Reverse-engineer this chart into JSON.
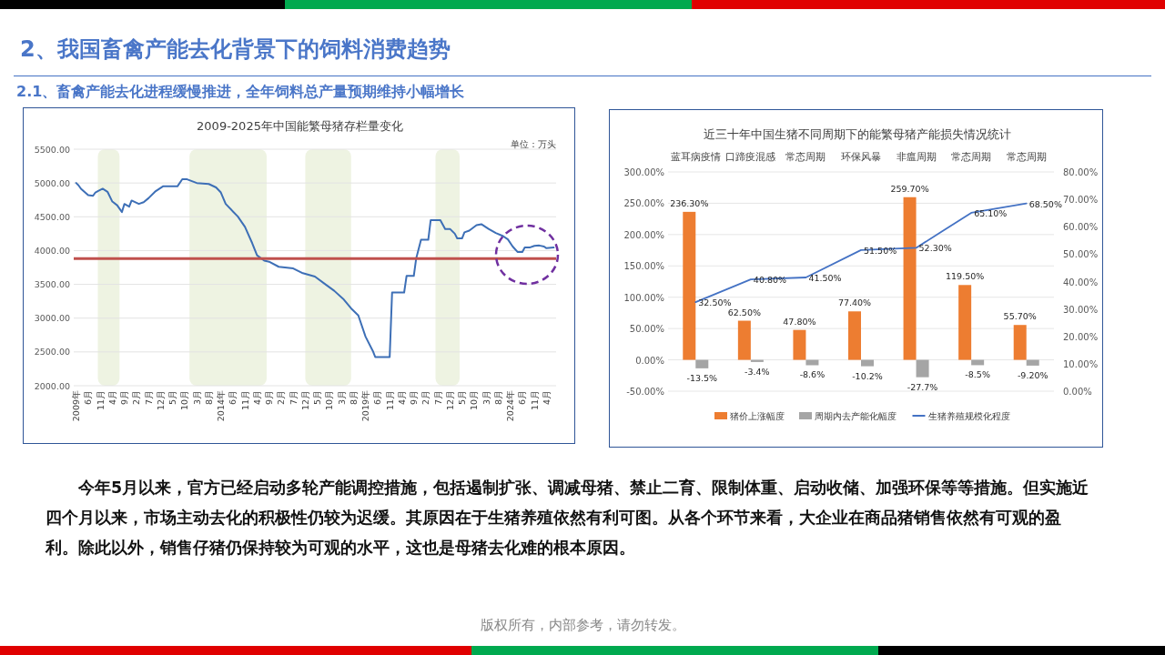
{
  "chart_data": [
    {
      "type": "other",
      "title": "2、我国畜禽产能去化背景下的饲料消费趋势",
      "subtitle": "2.1、畜禽产能去化进程缓慢推进，全年饲料总产量预期维持小幅增长",
      "annotations": [
        "今年5月以来，官方已经启动多轮产能调控措施，包括遏制扩张、调减母猪、禁止二育、限制体重、启动收储、加强环保等等措施。但实施近四个月以来，市场主动去化的积极性仍较为迟缓。其原因在于生猪养殖依然有利可图。从各个环节来看，大企业在商品猪销售依然有可观的盈利。除此以外，销售仔猪仍保持较为可观的水平，这也是母猪去化难的根本原因。",
        "版权所有，内部参考，请勿转发。"
      ]
    },
    {
      "type": "line",
      "title": "2009-2025年中国能繁母猪存栏量变化",
      "annotations": [
        "单位：万头"
      ],
      "series": [
        {
          "color": "#3d6fb6",
          "x": [
            "2009-01",
            "2009-02",
            "2009-03",
            "2009-06",
            "2009-08",
            "2009-09",
            "2009-10",
            "2009-12",
            "2010-02",
            "2010-04",
            "2010-06",
            "2010-08",
            "2010-09",
            "2010-11",
            "2010-12",
            "2011-03",
            "2011-05",
            "2011-07",
            "2011-10",
            "2012-01",
            "2012-07",
            "2012-09",
            "2012-11",
            "2013-03",
            "2013-08",
            "2013-11",
            "2014-01",
            "2014-03",
            "2014-08",
            "2014-11",
            "2015-02",
            "2015-04",
            "2015-07",
            "2015-09",
            "2016-01",
            "2016-07",
            "2016-11",
            "2017-04",
            "2017-08",
            "2017-12",
            "2018-04",
            "2018-07",
            "2018-10",
            "2019-01",
            "2019-04",
            "2019-05",
            "2019-11",
            "2019-12",
            "2020-05",
            "2020-06",
            "2020-09",
            "2020-10",
            "2020-12",
            "2021-03",
            "2021-04",
            "2021-08",
            "2021-10",
            "2021-12",
            "2022-02",
            "2022-03",
            "2022-05",
            "2022-06",
            "2022-08",
            "2022-11",
            "2023-01",
            "2023-04",
            "2023-07",
            "2023-10",
            "2023-12",
            "2024-02",
            "2024-04",
            "2024-06",
            "2024-07",
            "2024-09",
            "2024-11",
            "2025-01",
            "2025-03",
            "2025-04",
            "2025-07"
          ],
          "values": [
            5000,
            4965,
            4915,
            4820,
            4810,
            4860,
            4880,
            4915,
            4870,
            4725,
            4670,
            4570,
            4690,
            4650,
            4740,
            4690,
            4715,
            4775,
            4880,
            4950,
            4950,
            5055,
            5055,
            5000,
            4985,
            4935,
            4860,
            4690,
            4505,
            4350,
            4110,
            3930,
            3850,
            3835,
            3760,
            3735,
            3665,
            3615,
            3510,
            3405,
            3275,
            3145,
            3040,
            2725,
            2515,
            2425,
            2425,
            3380,
            3380,
            3625,
            3625,
            3885,
            4160,
            4160,
            4450,
            4450,
            4320,
            4320,
            4250,
            4180,
            4180,
            4270,
            4295,
            4375,
            4390,
            4320,
            4260,
            4215,
            4165,
            4060,
            3980,
            3980,
            4045,
            4045,
            4070,
            4075,
            4060,
            4035,
            4045
          ]
        }
      ],
      "xlim": [
        "2008-12",
        "2025-08"
      ],
      "xticks": [
        {
          "value": "2009-01",
          "label": "2009年"
        },
        {
          "value": "2009-06",
          "label": "6月"
        },
        {
          "value": "2009-11",
          "label": "11月"
        },
        {
          "value": "2010-04",
          "label": "4月"
        },
        {
          "value": "2010-09",
          "label": "9月"
        },
        {
          "value": "2011-02",
          "label": "2月"
        },
        {
          "value": "2011-07",
          "label": "7月"
        },
        {
          "value": "2011-12",
          "label": "12月"
        },
        {
          "value": "2012-05",
          "label": "5月"
        },
        {
          "value": "2012-10",
          "label": "10月"
        },
        {
          "value": "2013-03",
          "label": "3月"
        },
        {
          "value": "2013-08",
          "label": "8月"
        },
        {
          "value": "2014-01",
          "label": "2014年"
        },
        {
          "value": "2014-06",
          "label": "6月"
        },
        {
          "value": "2014-11",
          "label": "11月"
        },
        {
          "value": "2015-04",
          "label": "4月"
        },
        {
          "value": "2015-09",
          "label": "9月"
        },
        {
          "value": "2016-02",
          "label": "2月"
        },
        {
          "value": "2016-07",
          "label": "7月"
        },
        {
          "value": "2016-12",
          "label": "12月"
        },
        {
          "value": "2017-05",
          "label": "5月"
        },
        {
          "value": "2017-10",
          "label": "10月"
        },
        {
          "value": "2018-03",
          "label": "3月"
        },
        {
          "value": "2018-08",
          "label": "8月"
        },
        {
          "value": "2019-01",
          "label": "2019年"
        },
        {
          "value": "2019-06",
          "label": "6月"
        },
        {
          "value": "2019-11",
          "label": "11月"
        },
        {
          "value": "2020-04",
          "label": "4月"
        },
        {
          "value": "2020-09",
          "label": "9月"
        },
        {
          "value": "2021-02",
          "label": "2月"
        },
        {
          "value": "2021-07",
          "label": "7月"
        },
        {
          "value": "2021-12",
          "label": "12月"
        },
        {
          "value": "2022-05",
          "label": "5月"
        },
        {
          "value": "2022-10",
          "label": "10月"
        },
        {
          "value": "2023-03",
          "label": "3月"
        },
        {
          "value": "2023-08",
          "label": "8月"
        },
        {
          "value": "2024-01",
          "label": "2024年"
        },
        {
          "value": "2024-06",
          "label": "6月"
        },
        {
          "value": "2024-11",
          "label": "11月"
        },
        {
          "value": "2025-04",
          "label": "4月"
        }
      ],
      "ylim": [
        2000,
        5500
      ],
      "yticks": [
        {
          "value": 2000,
          "label": "2000.00"
        },
        {
          "value": 2500,
          "label": "2500.00"
        },
        {
          "value": 3000,
          "label": "3000.00"
        },
        {
          "value": 3500,
          "label": "3500.00"
        },
        {
          "value": 4000,
          "label": "4000.00"
        },
        {
          "value": 4500,
          "label": "4500.00"
        },
        {
          "value": 5000,
          "label": "5000.00"
        },
        {
          "value": 5500,
          "label": "5500.00"
        }
      ],
      "grid": "y",
      "bands": [
        {
          "axis": "x",
          "from": "2009-10",
          "to": "2010-07",
          "color": "#eef3e2"
        },
        {
          "axis": "x",
          "from": "2012-12",
          "to": "2015-08",
          "color": "#eef3e2"
        },
        {
          "axis": "x",
          "from": "2016-12",
          "to": "2018-07",
          "color": "#eef3e2"
        },
        {
          "axis": "x",
          "from": "2021-06",
          "to": "2022-04",
          "color": "#eef3e2"
        }
      ],
      "ref_lines": [
        {
          "axis": "y",
          "value": 3880,
          "color": "#c0504d"
        }
      ]
    },
    {
      "type": "bar",
      "title": "近三十年中国生猪不同周期下的能繁母猪产能损失情况统计",
      "categories": [
        "蓝耳病疫情",
        "口蹄疫混感",
        "常态周期",
        "环保风暴",
        "非瘟周期",
        "常态周期",
        "常态周期"
      ],
      "series": [
        {
          "name": "猪价上涨幅度",
          "color": "#ed7d31",
          "values": [
            236.3,
            62.5,
            47.8,
            77.4,
            259.7,
            119.5,
            55.7
          ],
          "value_labels": [
            "236.30%",
            "62.50%",
            "47.80%",
            "77.40%",
            "259.70%",
            "119.50%",
            "55.70%"
          ]
        },
        {
          "name": "周期内去产能化幅度",
          "color": "#a5a5a5",
          "values": [
            -13.5,
            -3.4,
            -8.6,
            -10.2,
            -27.7,
            -8.5,
            -9.2
          ],
          "value_labels": [
            "-13.5%",
            "-3.4%",
            "-8.6%",
            "-10.2%",
            "-27.7%",
            "-8.5%",
            "-9.20%"
          ]
        },
        {
          "name": "生猪养殖规模化程度",
          "type": "line",
          "axis": "y2",
          "color": "#4472c4",
          "values": [
            32.5,
            40.8,
            41.5,
            51.5,
            52.3,
            65.1,
            68.5
          ],
          "value_labels": [
            "32.50%",
            "40.80%",
            "41.50%",
            "51.50%",
            "52.30%",
            "65.10%",
            "68.50%"
          ]
        }
      ],
      "ylim": [
        -50,
        300
      ],
      "yticks": [
        {
          "value": -50,
          "label": "-50.00%"
        },
        {
          "value": 0,
          "label": "0.00%"
        },
        {
          "value": 50,
          "label": "50.00%"
        },
        {
          "value": 100,
          "label": "100.00%"
        },
        {
          "value": 150,
          "label": "150.00%"
        },
        {
          "value": 200,
          "label": "200.00%"
        },
        {
          "value": 250,
          "label": "250.00%"
        },
        {
          "value": 300,
          "label": "300.00%"
        }
      ],
      "y2lim": [
        0,
        80
      ],
      "y2ticks": [
        {
          "value": 0,
          "label": "0.00%"
        },
        {
          "value": 10,
          "label": "10.00%"
        },
        {
          "value": 20,
          "label": "20.00%"
        },
        {
          "value": 30,
          "label": "30.00%"
        },
        {
          "value": 40,
          "label": "40.00%"
        },
        {
          "value": 50,
          "label": "50.00%"
        },
        {
          "value": 60,
          "label": "60.00%"
        },
        {
          "value": 70,
          "label": "70.00%"
        },
        {
          "value": 80,
          "label": "80.00%"
        }
      ],
      "grid": "y",
      "legend": "bottom"
    }
  ]
}
